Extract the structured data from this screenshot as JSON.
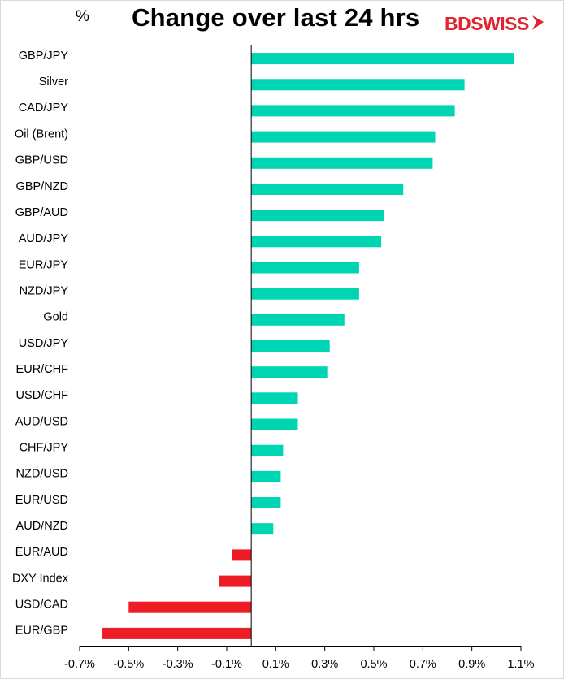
{
  "header": {
    "unit": "%",
    "title": "Change over last 24 hrs",
    "logo_text": "BDSWISS"
  },
  "colors": {
    "positive": "#00d5b3",
    "negative": "#ee1c25",
    "logo": "#e3232d"
  },
  "chart_data": {
    "type": "bar",
    "orientation": "horizontal",
    "title": "Change over last 24 hrs",
    "ylabel": "%",
    "categories": [
      "GBP/JPY",
      "Silver",
      "CAD/JPY",
      "Oil (Brent)",
      "GBP/USD",
      "GBP/NZD",
      "GBP/AUD",
      "AUD/JPY",
      "EUR/JPY",
      "NZD/JPY",
      "Gold",
      "USD/JPY",
      "EUR/CHF",
      "USD/CHF",
      "AUD/USD",
      "CHF/JPY",
      "NZD/USD",
      "EUR/USD",
      "AUD/NZD",
      "EUR/AUD",
      "DXY Index",
      "USD/CAD",
      "EUR/GBP"
    ],
    "values": [
      1.07,
      0.87,
      0.83,
      0.75,
      0.74,
      0.62,
      0.54,
      0.53,
      0.44,
      0.44,
      0.38,
      0.32,
      0.31,
      0.19,
      0.19,
      0.13,
      0.12,
      0.12,
      0.09,
      -0.08,
      -0.13,
      -0.5,
      -0.61
    ],
    "xlim": [
      -0.7,
      1.1
    ],
    "xticks": [
      -0.7,
      -0.5,
      -0.3,
      -0.1,
      0.1,
      0.3,
      0.5,
      0.7,
      0.9,
      1.1
    ],
    "xtick_labels": [
      "-0.7%",
      "-0.5%",
      "-0.3%",
      "-0.1%",
      "0.1%",
      "0.3%",
      "0.5%",
      "0.7%",
      "0.9%",
      "1.1%"
    ],
    "grid": false,
    "legend": "none"
  }
}
